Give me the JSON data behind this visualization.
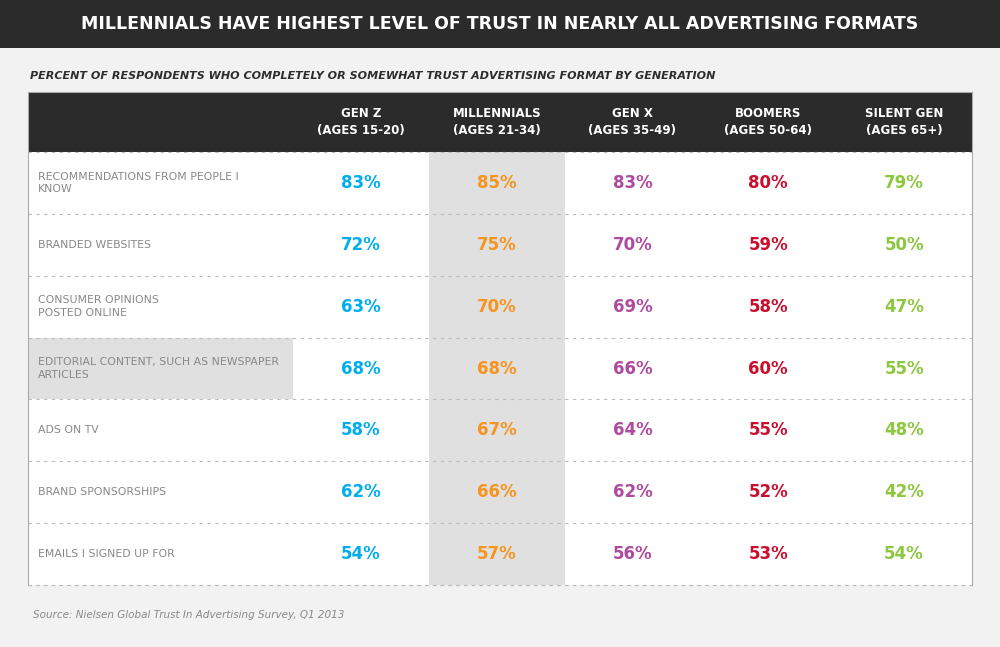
{
  "title": "MILLENNIALS HAVE HIGHEST LEVEL OF TRUST IN NEARLY ALL ADVERTISING FORMATS",
  "subtitle": "PERCENT OF RESPONDENTS WHO COMPLETELY OR SOMEWHAT TRUST ADVERTISING FORMAT BY GENERATION",
  "source": "Source: Nielsen Global Trust In Advertising Survey, Q1 2013",
  "columns": [
    "GEN Z\n(AGES 15-20)",
    "MILLENNIALS\n(AGES 21-34)",
    "GEN X\n(AGES 35-49)",
    "BOOMERS\n(AGES 50-64)",
    "SILENT GEN\n(AGES 65+)"
  ],
  "rows": [
    "RECOMMENDATIONS FROM PEOPLE I\nKNOW",
    "BRANDED WEBSITES",
    "CONSUMER OPINIONS\nPOSTED ONLINE",
    "EDITORIAL CONTENT, SUCH AS NEWSPAPER\nARTICLES",
    "ADS ON TV",
    "BRAND SPONSORSHIPS",
    "EMAILS I SIGNED UP FOR"
  ],
  "data": [
    [
      "83%",
      "85%",
      "83%",
      "80%",
      "79%"
    ],
    [
      "72%",
      "75%",
      "70%",
      "59%",
      "50%"
    ],
    [
      "63%",
      "70%",
      "69%",
      "58%",
      "47%"
    ],
    [
      "68%",
      "68%",
      "66%",
      "60%",
      "55%"
    ],
    [
      "58%",
      "67%",
      "64%",
      "55%",
      "48%"
    ],
    [
      "62%",
      "66%",
      "62%",
      "52%",
      "42%"
    ],
    [
      "54%",
      "57%",
      "56%",
      "53%",
      "54%"
    ]
  ],
  "col_colors": [
    "#00aeef",
    "#f7941d",
    "#ae4b9e",
    "#c8102e",
    "#8dc63f"
  ],
  "title_bg": "#2b2b2b",
  "title_color": "#ffffff",
  "subtitle_color": "#2d2d2d",
  "header_bg": "#2b2b2b",
  "header_color": "#ffffff",
  "row_label_color": "#888888",
  "millennials_col_bg": "#e0e0e0",
  "editorial_row_label_bg": "#e0e0e0",
  "table_bg": "#ffffff",
  "source_color": "#888888",
  "background_color": "#f2f2f2",
  "photo_bg": "#b0b0b0",
  "dotted_color": "#bbbbbb"
}
